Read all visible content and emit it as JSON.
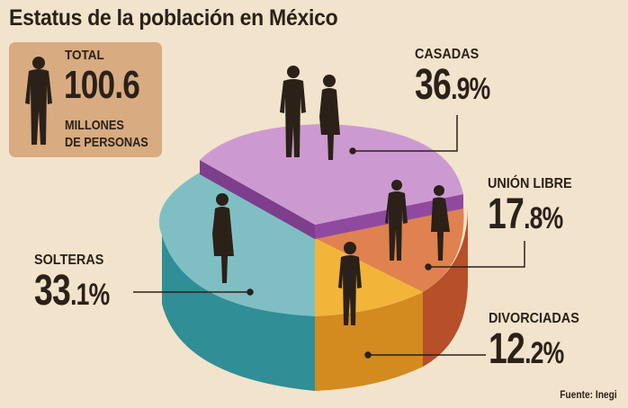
{
  "title": "Estatus de la población en México",
  "total": {
    "label_top": "TOTAL",
    "value": "100.6",
    "label_bottom_1": "MILLONES",
    "label_bottom_2": "DE PERSONAS"
  },
  "source": "Fuente: Inegi",
  "chart_data": {
    "type": "pie",
    "title": "Estatus de la población en México",
    "slices": [
      {
        "label": "CASADAS",
        "value": 36.9,
        "pct_int": "36",
        "pct_dec": ".9%",
        "color": "#cc9ad0",
        "side": "#7d3e8c"
      },
      {
        "label": "UNIÓN LIBRE",
        "value": 17.8,
        "pct_int": "17",
        "pct_dec": ".8%",
        "color": "#e0824f",
        "side": "#b64f2a"
      },
      {
        "label": "DIVORCIADAS",
        "value": 12.2,
        "pct_int": "12",
        "pct_dec": ".2%",
        "color": "#f2b53a",
        "side": "#d38a1e"
      },
      {
        "label": "SOLTERAS",
        "value": 33.1,
        "pct_int": "33",
        "pct_dec": ".1%",
        "color": "#7fbfc4",
        "side": "#2f8e96"
      }
    ]
  }
}
